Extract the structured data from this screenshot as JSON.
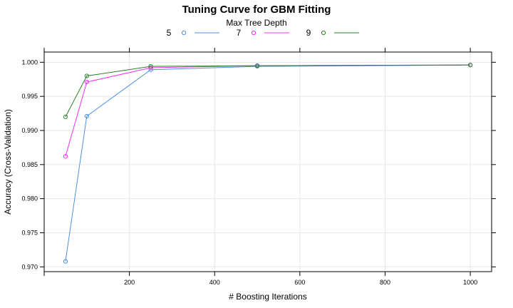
{
  "chart_data": {
    "type": "line",
    "title": "Tuning Curve for GBM Fitting",
    "legend_title": "Max Tree Depth",
    "legend_position": "top",
    "xlabel": "# Boosting Iterations",
    "ylabel": "Accuracy (Cross-Validation)",
    "grid": true,
    "x": [
      50,
      100,
      250,
      500,
      1000
    ],
    "xlim": [
      0,
      1050
    ],
    "ylim": [
      0.9693,
      1.0015
    ],
    "x_ticks": [
      200,
      400,
      600,
      800,
      1000
    ],
    "y_ticks": [
      0.97,
      0.975,
      0.98,
      0.985,
      0.99,
      0.995,
      1.0
    ],
    "y_tick_labels": [
      "0.970",
      "0.975",
      "0.980",
      "0.985",
      "0.990",
      "0.995",
      "1.000"
    ],
    "series": [
      {
        "name": "5",
        "color": "#4d8fe0",
        "values": [
          0.9708,
          0.9921,
          0.9989,
          0.9994,
          0.9996
        ]
      },
      {
        "name": "7",
        "color": "#f030f0",
        "values": [
          0.9862,
          0.9971,
          0.9992,
          0.9995,
          0.9996
        ]
      },
      {
        "name": "9",
        "color": "#2e7d2e",
        "values": [
          0.992,
          0.998,
          0.9994,
          0.9995,
          0.9996
        ]
      }
    ]
  }
}
